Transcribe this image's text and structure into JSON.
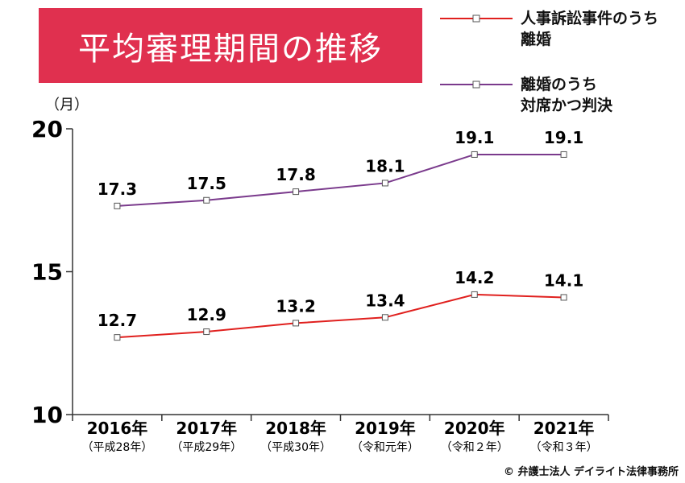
{
  "title": "平均審理期間の推移",
  "unit": "（月）",
  "copyright": "© 弁護士法人 デイライト法律事務所",
  "chart_data": {
    "type": "line",
    "categories": [
      "2016年",
      "2017年",
      "2018年",
      "2019年",
      "2020年",
      "2021年"
    ],
    "category_subtitles": [
      "（平成28年）",
      "（平成29年）",
      "（平成30年）",
      "（令和元年）",
      "（令和２年）",
      "（令和３年）"
    ],
    "ylim": [
      10,
      20
    ],
    "yticks": [
      10,
      15,
      20
    ],
    "series": [
      {
        "name": "人事訴訟事件のうち\n離婚",
        "color": "#e0201e",
        "values": [
          12.7,
          12.9,
          13.2,
          13.4,
          14.2,
          14.1
        ]
      },
      {
        "name": "離婚のうち\n対席かつ判決",
        "color": "#7a3a8c",
        "values": [
          17.3,
          17.5,
          17.8,
          18.1,
          19.1,
          19.1
        ]
      }
    ],
    "legend_position": "top-right",
    "grid": false
  }
}
